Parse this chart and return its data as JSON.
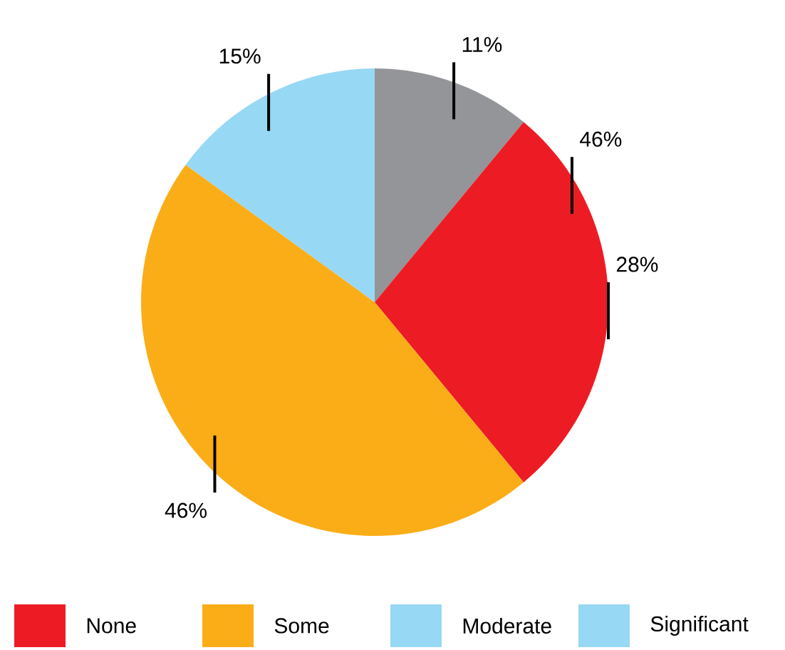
{
  "chart_data": {
    "type": "pie",
    "categories": [
      null,
      "None",
      "Some",
      "Moderate",
      "Significant"
    ],
    "values": [
      11,
      28,
      46,
      15,
      0
    ],
    "colors": [
      "#939598",
      "#ed1c24",
      "#fbad18",
      "#97d8f4",
      "#97d8f4"
    ],
    "value_labels": [
      "11%",
      "28%",
      "46%",
      "15%",
      null
    ],
    "annotations": [
      "46%"
    ],
    "legend": "bottom"
  }
}
